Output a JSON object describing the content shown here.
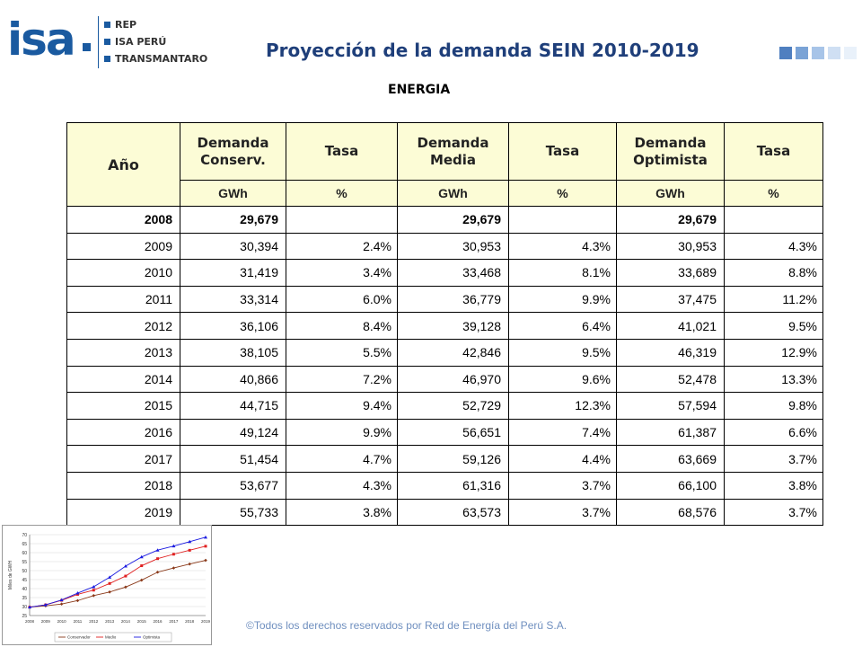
{
  "header": {
    "logo_text": "isa",
    "brands": [
      "REP",
      "ISA PERÚ",
      "TRANSMANTARO"
    ],
    "title": "Proyección de la demanda SEIN 2010-2019",
    "subtitle": "ENERGIA",
    "deco_colors": [
      "#4f7fc0",
      "#7aa3d6",
      "#a7c4e8",
      "#cfdff3",
      "#e9f1fa"
    ]
  },
  "table": {
    "headers": [
      "Año",
      "Demanda Conserv.",
      "Tasa",
      "Demanda Media",
      "Tasa",
      "Demanda Optimista",
      "Tasa"
    ],
    "units": [
      "GWh",
      "%",
      "GWh",
      "%",
      "GWh",
      "%"
    ],
    "rows": [
      [
        "2008",
        "29,679",
        "",
        "29,679",
        "",
        "29,679",
        ""
      ],
      [
        "2009",
        "30,394",
        "2.4%",
        "30,953",
        "4.3%",
        "30,953",
        "4.3%"
      ],
      [
        "2010",
        "31,419",
        "3.4%",
        "33,468",
        "8.1%",
        "33,689",
        "8.8%"
      ],
      [
        "2011",
        "33,314",
        "6.0%",
        "36,779",
        "9.9%",
        "37,475",
        "11.2%"
      ],
      [
        "2012",
        "36,106",
        "8.4%",
        "39,128",
        "6.4%",
        "41,021",
        "9.5%"
      ],
      [
        "2013",
        "38,105",
        "5.5%",
        "42,846",
        "9.5%",
        "46,319",
        "12.9%"
      ],
      [
        "2014",
        "40,866",
        "7.2%",
        "46,970",
        "9.6%",
        "52,478",
        "13.3%"
      ],
      [
        "2015",
        "44,715",
        "9.4%",
        "52,729",
        "12.3%",
        "57,594",
        "9.8%"
      ],
      [
        "2016",
        "49,124",
        "9.9%",
        "56,651",
        "7.4%",
        "61,387",
        "6.6%"
      ],
      [
        "2017",
        "51,454",
        "4.7%",
        "59,126",
        "4.4%",
        "63,669",
        "3.7%"
      ],
      [
        "2018",
        "53,677",
        "4.3%",
        "61,316",
        "3.7%",
        "66,100",
        "3.8%"
      ],
      [
        "2019",
        "55,733",
        "3.8%",
        "63,573",
        "3.7%",
        "68,576",
        "3.7%"
      ]
    ]
  },
  "chart_data": {
    "type": "line",
    "title": "",
    "xlabel": "",
    "ylabel": "Miles de GWH",
    "x": [
      "2008",
      "2009",
      "2010",
      "2011",
      "2012",
      "2013",
      "2014",
      "2015",
      "2016",
      "2017",
      "2018",
      "2019"
    ],
    "ylim": [
      25,
      70
    ],
    "yticks": [
      25,
      30,
      35,
      40,
      45,
      50,
      55,
      60,
      65,
      70
    ],
    "grid": true,
    "legend_position": "bottom",
    "series": [
      {
        "name": "Conservador",
        "color": "#8b3a1a",
        "values": [
          29.679,
          30.394,
          31.419,
          33.314,
          36.106,
          38.105,
          40.866,
          44.715,
          49.124,
          51.454,
          53.677,
          55.733
        ]
      },
      {
        "name": "Medio",
        "color": "#e02020",
        "values": [
          29.679,
          30.953,
          33.468,
          36.779,
          39.128,
          42.846,
          46.97,
          52.729,
          56.651,
          59.126,
          61.316,
          63.573
        ]
      },
      {
        "name": "Optimista",
        "color": "#1a1ae0",
        "values": [
          29.679,
          30.953,
          33.689,
          37.475,
          41.021,
          46.319,
          52.478,
          57.594,
          61.387,
          63.669,
          66.1,
          68.576
        ]
      }
    ]
  },
  "footer": "©Todos los derechos reservados por Red de Energía del Perú S.A."
}
